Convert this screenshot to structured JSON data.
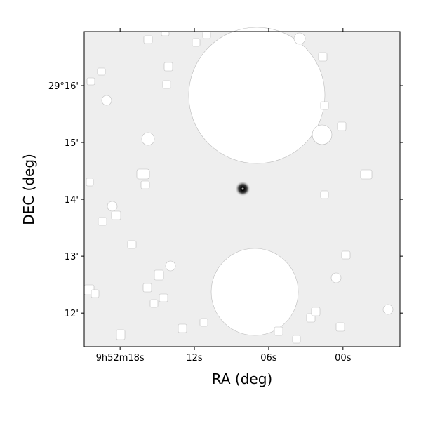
{
  "chart_data": {
    "type": "image",
    "xlabel": "RA (deg)",
    "ylabel": "DEC (deg)",
    "xlim": [
      20.9,
      -4.6
    ],
    "xticks": [
      {
        "value": 18,
        "label": "9h52m18s"
      },
      {
        "value": 12,
        "label": "12s"
      },
      {
        "value": 6,
        "label": "06s"
      },
      {
        "value": 0,
        "label": "00s"
      }
    ],
    "ylim": [
      11.41,
      16.95
    ],
    "yticks": [
      {
        "value": 12,
        "label": "12'"
      },
      {
        "value": 13,
        "label": "13'"
      },
      {
        "value": 14,
        "label": "14'"
      },
      {
        "value": 15,
        "label": "15'"
      },
      {
        "value": 16,
        "label": "29°16'"
      }
    ]
  }
}
